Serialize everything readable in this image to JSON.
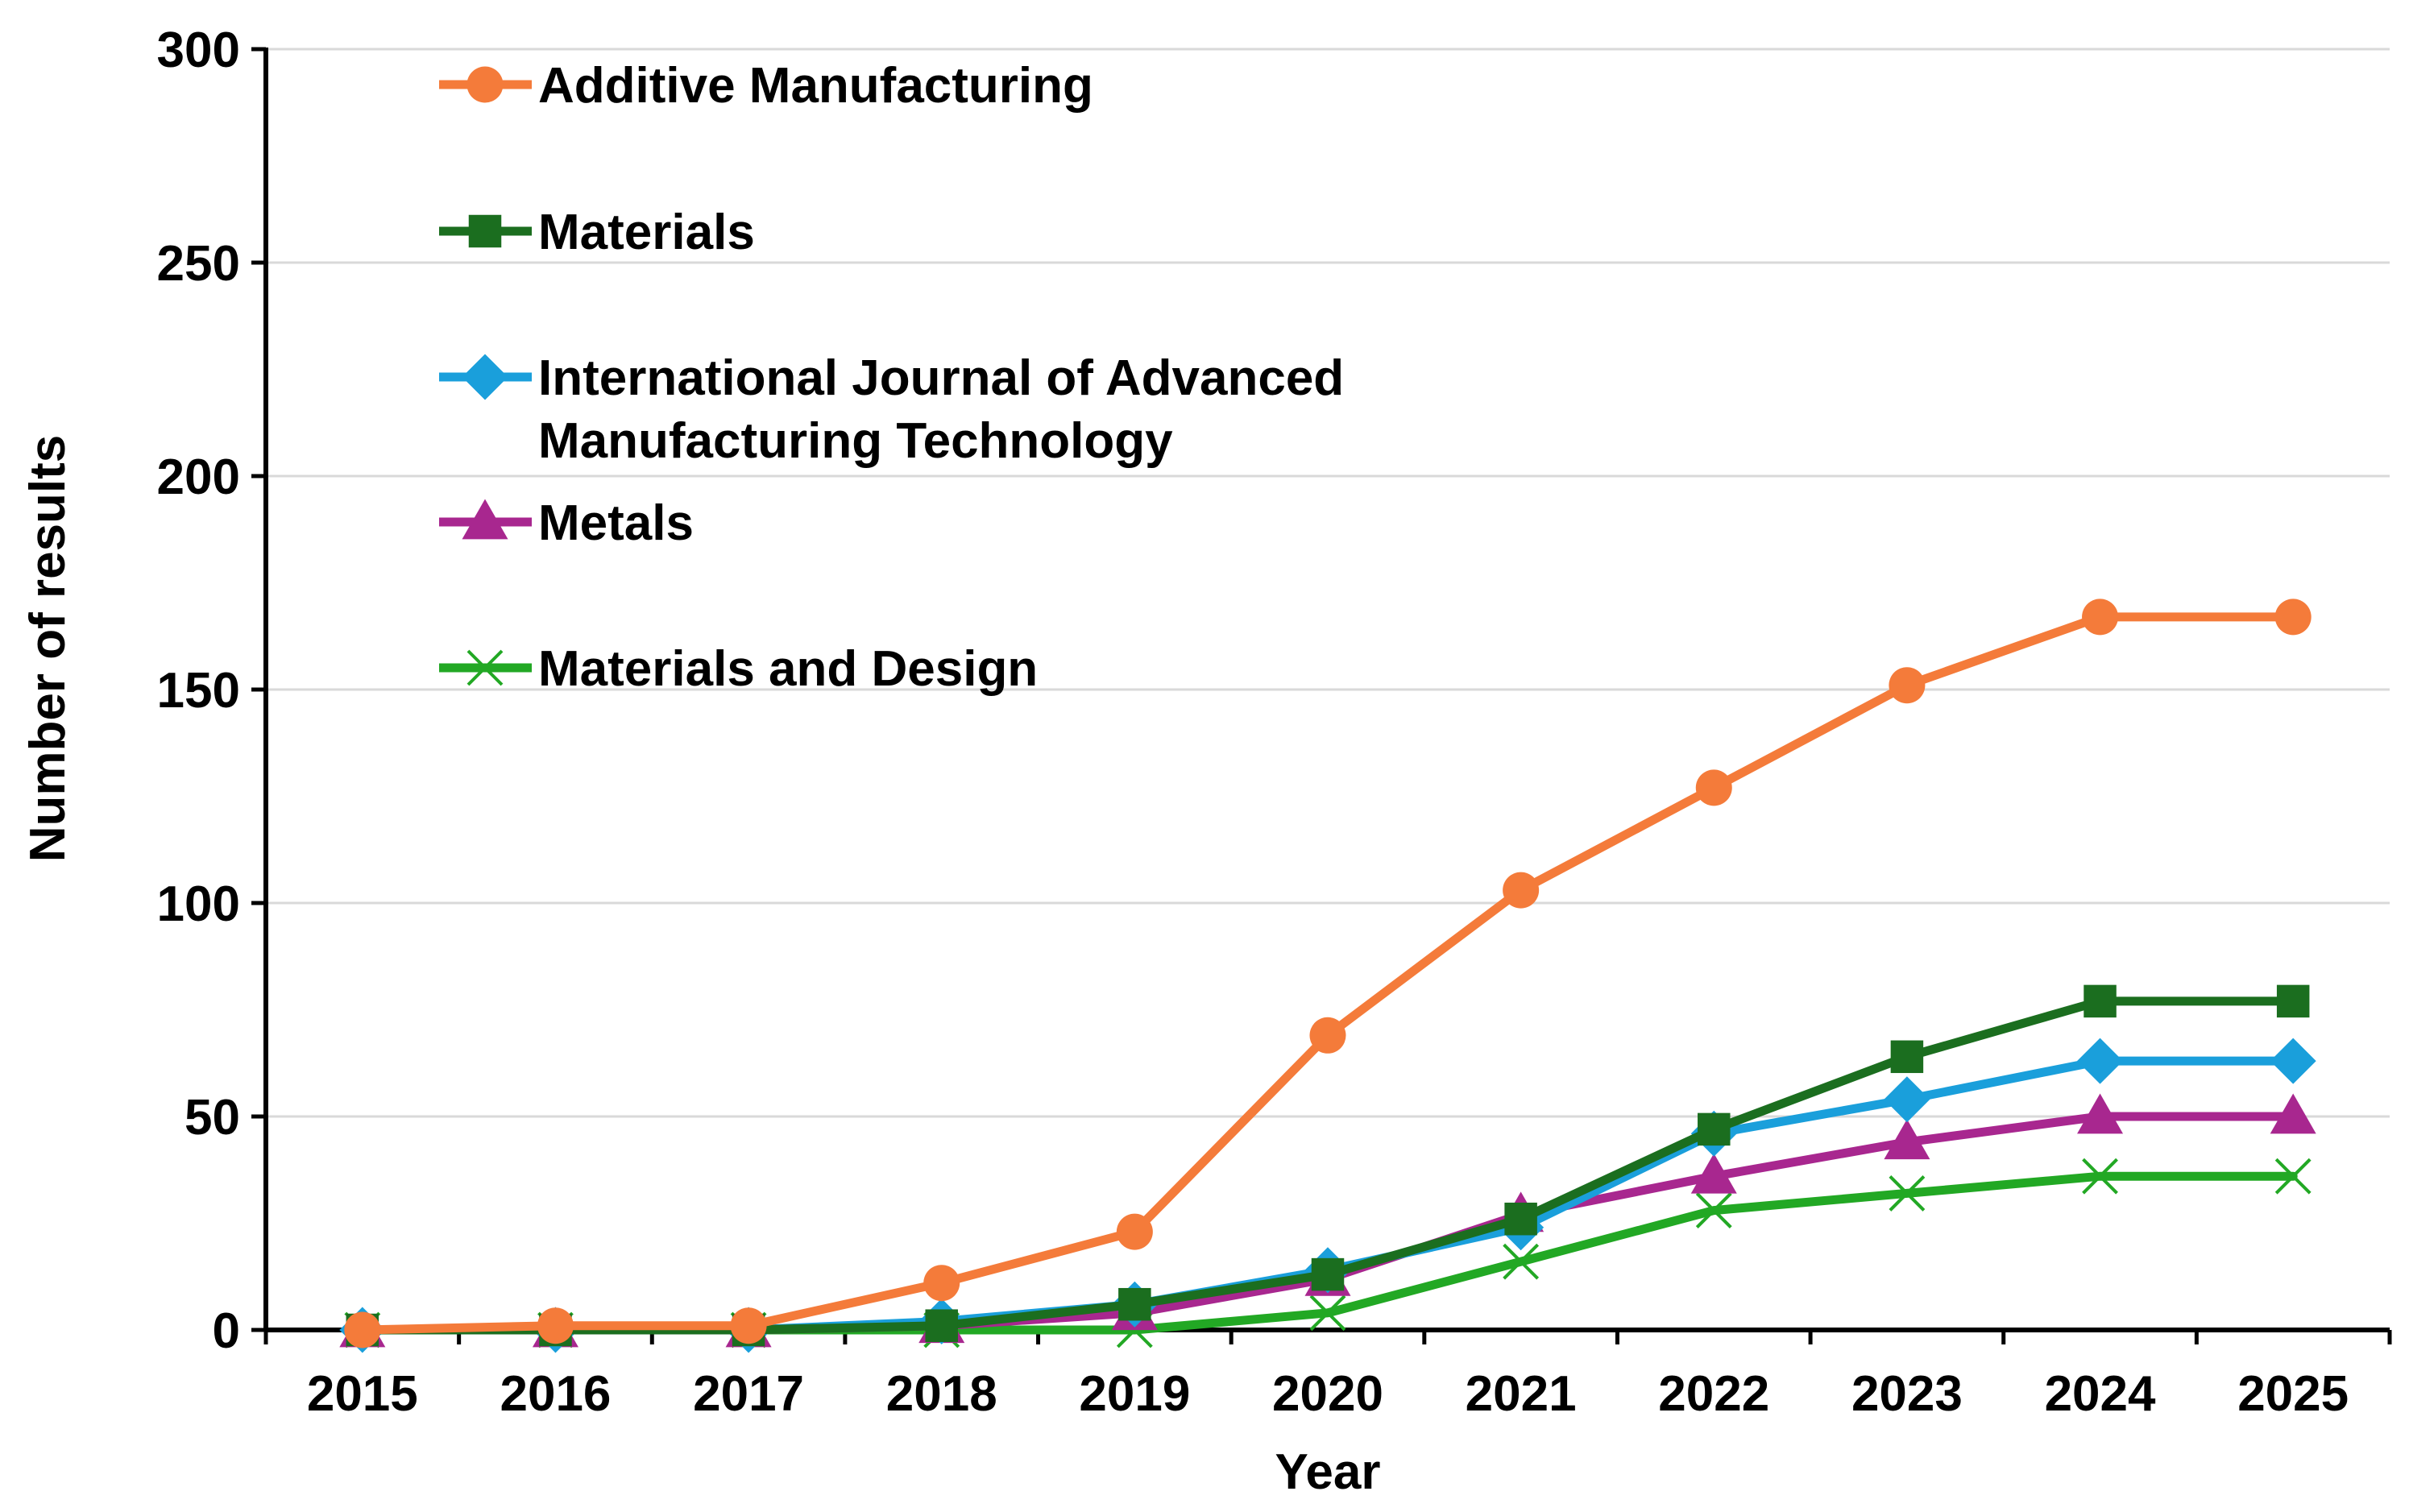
{
  "chart_data": {
    "type": "line",
    "title": "",
    "xlabel": "Year",
    "ylabel": "Number of results",
    "categories": [
      "2015",
      "2016",
      "2017",
      "2018",
      "2019",
      "2020",
      "2021",
      "2022",
      "2023",
      "2024",
      "2025"
    ],
    "ylim": [
      0,
      300
    ],
    "yticks": [
      "0",
      "50",
      "100",
      "150",
      "200",
      "250",
      "300"
    ],
    "grid": true,
    "legend_position": "top-left",
    "series": [
      {
        "name": "Additive Manufacturing",
        "label_lines": [
          "Additive Manufacturing"
        ],
        "color": "#F47B3A",
        "marker": "circle",
        "values": [
          0,
          1,
          1,
          11,
          23,
          69,
          103,
          127,
          151,
          167,
          167
        ]
      },
      {
        "name": "Materials",
        "label_lines": [
          "Materials"
        ],
        "color": "#1B6E1F",
        "marker": "square",
        "values": [
          0,
          0,
          0,
          1,
          6,
          13,
          26,
          47,
          64,
          77,
          77
        ]
      },
      {
        "name": "International Journal of Advanced Manufacturing Technology",
        "label_lines": [
          "International Journal of Advanced",
          "Manufacturing Technology"
        ],
        "color": "#1A9FDB",
        "marker": "diamond",
        "values": [
          0,
          0,
          0,
          2,
          6,
          14,
          24,
          46,
          54,
          63,
          63
        ]
      },
      {
        "name": "Metals",
        "label_lines": [
          "Metals"
        ],
        "color": "#A8278F",
        "marker": "triangle",
        "values": [
          0,
          0,
          0,
          1,
          4,
          12,
          27,
          36,
          44,
          50,
          50
        ]
      },
      {
        "name": "Materials and Design",
        "label_lines": [
          "Materials and Design"
        ],
        "color": "#22A824",
        "marker": "x",
        "values": [
          0,
          0,
          0,
          0,
          0,
          4,
          16,
          28,
          32,
          36,
          36
        ]
      }
    ]
  }
}
